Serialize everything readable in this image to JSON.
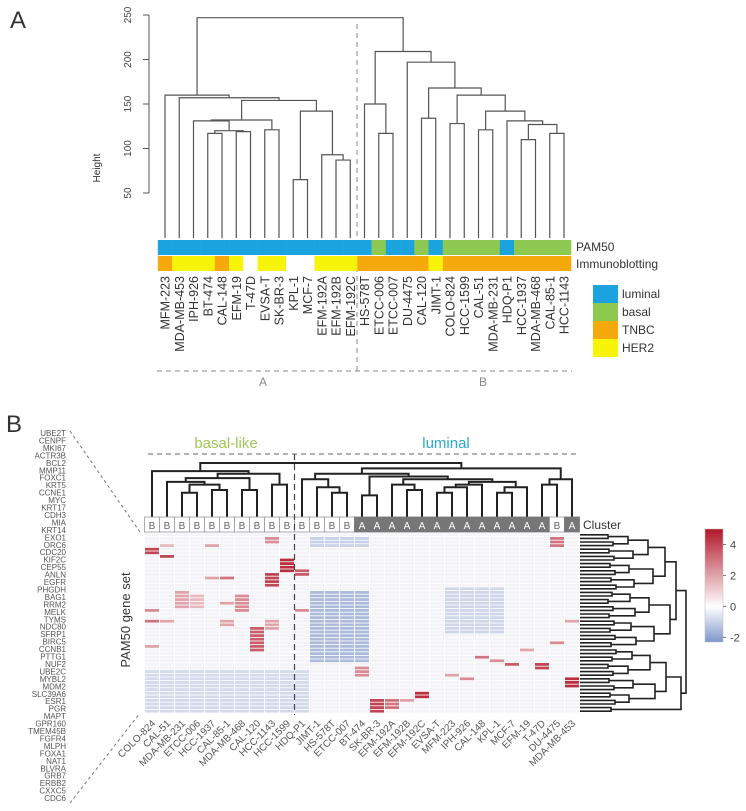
{
  "panel_a": {
    "panel_label": "A",
    "chart_data": {
      "type": "dendrogram",
      "ylabel": "Height",
      "yticks": [
        50,
        100,
        150,
        200,
        250
      ],
      "ylim": [
        0,
        250
      ],
      "leaves": [
        "MFM-223",
        "MDA-MB-453",
        "IPH-926",
        "BT-474",
        "CAL-148",
        "EFM-19",
        "T-47D",
        "EVSA-T",
        "SK-BR-3",
        "KPL-1",
        "MCF-7",
        "EFM-192A",
        "EFM-192B",
        "EFM-192C",
        "HS-578T",
        "ETCC-006",
        "ETCC-007",
        "DU-4475",
        "CAL-120",
        "JIMT-1",
        "COLO-824",
        "HCC-1599",
        "CAL-51",
        "MDA-MB-231",
        "HDQ-P1",
        "HCC-1937",
        "MDA-MB-468",
        "CAL-85-1",
        "HCC-1143"
      ],
      "tree": [
        [
          0,
          [
            1,
            [
              [
                [
                  2,
                  [
                    [
                      3,
                      4,
                      117
                    ],
                    [
                      5,
                      6,
                      119
                    ],
                    120
                  ],
                  131
                ],
                [
                  7,
                  8,
                  121
                ],
                132
              ],
              [
                [
                  9,
                  10,
                  65
                ],
                [
                  11,
                  [
                    12,
                    13,
                    87
                  ],
                  93
                ],
                142
              ],
              154
            ],
            157
          ],
          160
        ],
        [
          [
            14,
            [
              15,
              16,
              117
            ],
            150
          ],
          [
            17,
            [
              [
                18,
                19,
                134
              ],
              [
                [
                  20,
                  21,
                  128
                ],
                [
                  [
                    22,
                    23,
                    121
                  ],
                  [
                    24,
                    [
                      [
                        25,
                        26,
                        110
                      ],
                      [
                        27,
                        28,
                        117
                      ],
                      127
                    ],
                    131
                  ],
                  142
                ],
                160
              ],
              168
            ],
            197
          ],
          209
        ],
        247
      ],
      "pam50": [
        "luminal",
        "luminal",
        "luminal",
        "luminal",
        "luminal",
        "luminal",
        "luminal",
        "luminal",
        "luminal",
        "luminal",
        "luminal",
        "luminal",
        "luminal",
        "luminal",
        "luminal",
        "basal",
        "luminal",
        "luminal",
        "basal",
        "luminal",
        "basal",
        "basal",
        "basal",
        "basal",
        "luminal",
        "basal",
        "basal",
        "basal",
        "basal"
      ],
      "immunoblotting": [
        "TNBC",
        "HER2",
        "HER2",
        "HER2",
        "TNBC",
        "HER2",
        "",
        "HER2",
        "HER2",
        "",
        "",
        "HER2",
        "HER2",
        "HER2",
        "TNBC",
        "TNBC",
        "TNBC",
        "TNBC",
        "TNBC",
        "HER2",
        "TNBC",
        "TNBC",
        "TNBC",
        "TNBC",
        "TNBC",
        "TNBC",
        "TNBC",
        "TNBC",
        "TNBC"
      ],
      "row_labels": [
        "PAM50",
        "Immunoblotting"
      ],
      "legend": [
        {
          "label": "luminal",
          "color": "#1ba3e0"
        },
        {
          "label": "basal",
          "color": "#8dc850"
        },
        {
          "label": "TNBC",
          "color": "#f6a90a"
        },
        {
          "label": "HER2",
          "color": "#f7f40a"
        }
      ],
      "group_labels": [
        "A",
        "B"
      ]
    }
  },
  "panel_b": {
    "panel_label": "B",
    "chart_data": {
      "type": "heatmap",
      "group_labels": [
        {
          "label": "basal-like",
          "color": "#9fc75a"
        },
        {
          "label": "luminal",
          "color": "#2aa9c9"
        }
      ],
      "ylabel": "PAM50 gene set",
      "cluster_label": "Cluster",
      "columns": [
        "COLO-824",
        "CAL-51",
        "MDA-MB-231",
        "ETCC-006",
        "HCC-1937",
        "CAL-85-1",
        "MDA-MB-468",
        "CAL-120",
        "HCC-1143",
        "HCC-1599",
        "HDQ-P1",
        "JIMT-1",
        "HS-578T",
        "ETCC-007",
        "BT-474",
        "SK-BR-3",
        "EFM-192A",
        "EFM-192B",
        "EFM-192C",
        "EVSA-T",
        "MFM-223",
        "IPH-926",
        "CAL-148",
        "KPL-1",
        "MCF-7",
        "EFM-19",
        "T-47D",
        "DU-4475",
        "MDA-MB-453"
      ],
      "cluster": [
        "B",
        "B",
        "B",
        "B",
        "B",
        "B",
        "B",
        "B",
        "B",
        "B",
        "B",
        "B",
        "B",
        "B",
        "A",
        "A",
        "A",
        "A",
        "A",
        "A",
        "A",
        "A",
        "A",
        "A",
        "A",
        "A",
        "A",
        "B",
        "A"
      ],
      "genes": [
        "UBE2T",
        "CENPF",
        "MKI67",
        "ACTR3B",
        "BCL2",
        "MMP11",
        "FOXC1",
        "KRT5",
        "CCNE1",
        "MYC",
        "KRT17",
        "CDH3",
        "MIA",
        "KRT14",
        "EXO1",
        "ORC6",
        "CDC20",
        "KIF2C",
        "CEP55",
        "ANLN",
        "EGFR",
        "PHGDH",
        "BAG1",
        "RRM2",
        "MELK",
        "TYMS",
        "NDC80",
        "SFRP1",
        "BIRC5",
        "CCNB1",
        "PTTG1",
        "NUF2",
        "UBE2C",
        "MYBL2",
        "MDM2",
        "SLC39A6",
        "ESR1",
        "PGR",
        "MAPT",
        "GPR160",
        "TMEM45B",
        "FGFR4",
        "MLPH",
        "FOXA1",
        "NAT1",
        "BLVRA",
        "GRB7",
        "ERBB2",
        "CXXC5",
        "CDC6"
      ],
      "values_blocks_note_format": "[row_from,row_to,col_from,col_to,value]",
      "value_blocks": [
        [
          4,
          5,
          0,
          0,
          4
        ],
        [
          21,
          21,
          0,
          0,
          2.5
        ],
        [
          24,
          24,
          0,
          0,
          3
        ],
        [
          31,
          31,
          0,
          0,
          2
        ],
        [
          3,
          3,
          1,
          1,
          1.5
        ],
        [
          6,
          6,
          1,
          1,
          4
        ],
        [
          24,
          24,
          1,
          1,
          2
        ],
        [
          16,
          20,
          2,
          2,
          2
        ],
        [
          17,
          20,
          3,
          3,
          1.5
        ],
        [
          3,
          3,
          4,
          4,
          2
        ],
        [
          12,
          12,
          4,
          4,
          2
        ],
        [
          12,
          12,
          5,
          5,
          3
        ],
        [
          19,
          19,
          5,
          5,
          2
        ],
        [
          24,
          25,
          5,
          5,
          2
        ],
        [
          17,
          21,
          6,
          6,
          2.5
        ],
        [
          26,
          32,
          7,
          7,
          3.5
        ],
        [
          1,
          2,
          8,
          8,
          2.5
        ],
        [
          11,
          14,
          8,
          8,
          4
        ],
        [
          24,
          26,
          8,
          8,
          2
        ],
        [
          7,
          10,
          9,
          9,
          4.5
        ],
        [
          39,
          39,
          9,
          9,
          2
        ],
        [
          10,
          11,
          10,
          10,
          3.5
        ],
        [
          21,
          21,
          10,
          10,
          2.5
        ],
        [
          1,
          3,
          11,
          14,
          -1
        ],
        [
          16,
          35,
          11,
          14,
          -1.5
        ],
        [
          37,
          39,
          14,
          14,
          2.5
        ],
        [
          46,
          50,
          15,
          15,
          4
        ],
        [
          46,
          48,
          16,
          16,
          3
        ],
        [
          46,
          46,
          17,
          17,
          2
        ],
        [
          44,
          45,
          18,
          18,
          4.5
        ],
        [
          15,
          27,
          20,
          23,
          -0.9
        ],
        [
          39,
          39,
          20,
          20,
          2
        ],
        [
          40,
          40,
          21,
          21,
          2.5
        ],
        [
          34,
          34,
          22,
          22,
          3
        ],
        [
          35,
          35,
          23,
          23,
          2.5
        ],
        [
          36,
          36,
          24,
          24,
          3.5
        ],
        [
          32,
          32,
          25,
          25,
          2
        ],
        [
          36,
          37,
          26,
          26,
          4
        ],
        [
          1,
          3,
          27,
          27,
          3
        ],
        [
          30,
          30,
          27,
          27,
          2.5
        ],
        [
          24,
          24,
          28,
          28,
          2
        ],
        [
          40,
          42,
          28,
          28,
          4.5
        ],
        [
          38,
          49,
          0,
          10,
          -0.8
        ]
      ],
      "col_tree": [
        [
          0,
          [
            [
              [
                1,
                [
                  [
                    2,
                    3,
                    0.45
                  ],
                  [
                    4,
                    5,
                    0.5
                  ],
                  0.6
                ],
                0.65
              ],
              [
                6,
                7,
                0.5
              ],
              0.72
            ],
            [
              8,
              9,
              0.6
            ],
            0.8
          ],
          0.85
        ],
        [
          [
            [
              10,
              [
                11,
                [
                  12,
                  13,
                  0.45
                ],
                0.55
              ],
              0.7
            ],
            [
              [
                14,
                15,
                0.4
              ],
              [
                [
                  16,
                  [
                    17,
                    18,
                    0.5
                  ],
                  0.6
                ],
                [
                  [
                    [
                      [
                        19,
                        20,
                        0.45
                      ],
                      21,
                      0.55
                    ],
                    22,
                    0.6
                  ],
                  [
                    [
                      23,
                      24,
                      0.45
                    ],
                    25,
                    0.55
                  ],
                  0.65
                ],
                0.7
              ],
              0.75
            ],
            0.8
          ],
          [
            [
              26,
              27,
              0.6
            ],
            28,
            0.7
          ],
          0.9
        ],
        1
      ],
      "colorbar": {
        "ticks": [
          4,
          2,
          0,
          -2
        ],
        "range": [
          -2.3,
          5
        ],
        "low_color": "#7f96c9",
        "mid_color": "#ffffff",
        "high_color": "#b2182b"
      }
    }
  }
}
